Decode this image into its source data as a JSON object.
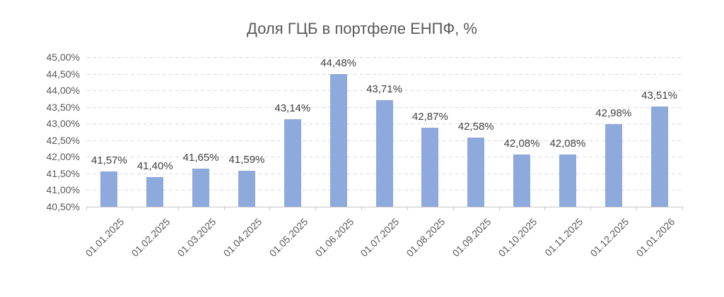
{
  "chart_data": {
    "type": "bar",
    "title": "Доля ГЦБ в портфеле ЕНПФ, %",
    "categories": [
      "01.01.2025",
      "01.02.2025",
      "01.03.2025",
      "01.04.2025",
      "01.05.2025",
      "01.06.2025",
      "01.07.2025",
      "01.08.2025",
      "01.09.2025",
      "01.10.2025",
      "01.11.2025",
      "01.12.2025",
      "01.01.2026"
    ],
    "values": [
      41.57,
      41.4,
      41.65,
      41.59,
      43.14,
      44.48,
      43.71,
      42.87,
      42.58,
      42.08,
      42.08,
      42.98,
      43.51
    ],
    "value_labels": [
      "41,57%",
      "41,40%",
      "41,65%",
      "41,59%",
      "43,14%",
      "44,48%",
      "43,71%",
      "42,87%",
      "42,58%",
      "42,08%",
      "42,08%",
      "42,98%",
      "43,51%"
    ],
    "y_tick_labels": [
      "45,00%",
      "44,50%",
      "44,00%",
      "43,50%",
      "43,00%",
      "42,50%",
      "42,00%",
      "41,50%",
      "41,00%",
      "40,50%"
    ],
    "ylim": [
      40.5,
      45.0
    ],
    "xlabel": "",
    "ylabel": "",
    "grid": true,
    "gridline_style": "dashed",
    "legend": false,
    "colors": {
      "bar": "#8ea9db",
      "gridline": "#d9d9d9",
      "axis_line": "#c6c6c6",
      "tick_label": "#595959",
      "data_label": "#404040",
      "title": "#595959",
      "background": "#ffffff"
    }
  }
}
